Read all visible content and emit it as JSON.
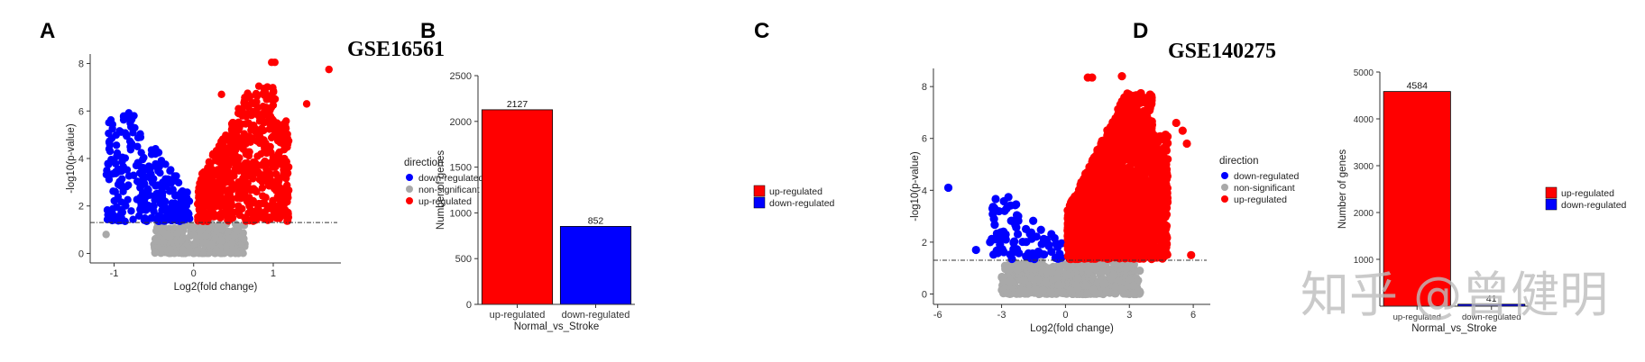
{
  "panels": {
    "A": "A",
    "B": "B",
    "C": "C",
    "D": "D"
  },
  "watermark": "知乎 @曾健明",
  "colors": {
    "up": "#ff0000",
    "down": "#0000ff",
    "ns": "#a9a9a9"
  },
  "chart_data": [
    {
      "id": "A",
      "type": "scatter",
      "title": "GSE16561",
      "xlabel": "Log2(fold change)",
      "ylabel": "-log10(p-value)",
      "xlim": [
        -1.3,
        1.85
      ],
      "ylim": [
        -0.4,
        8.4
      ],
      "xticks": [
        -1,
        0,
        1
      ],
      "yticks": [
        0,
        2,
        4,
        6,
        8
      ],
      "threshold_y": 1.3,
      "legend": {
        "title": "direction",
        "entries": [
          "down-regulated",
          "non-significant",
          "up-regulated"
        ],
        "position": "right"
      },
      "clusters": {
        "down": {
          "xrange": [
            -1.1,
            -0.05
          ],
          "maxY": 5.9,
          "n": 300
        },
        "up": {
          "xrange": [
            0.05,
            1.2
          ],
          "maxY": 7.0,
          "n": 650
        },
        "ns": {
          "xrange": [
            -0.5,
            0.65
          ],
          "n": 400
        }
      },
      "extremes": [
        [
          0.98,
          8.05
        ],
        [
          1.02,
          8.05
        ],
        [
          1.7,
          7.75
        ],
        [
          1.42,
          6.3
        ],
        [
          0.35,
          6.7
        ],
        [
          -0.85,
          5.8
        ],
        [
          -0.75,
          5.8
        ],
        [
          -1.05,
          4.3
        ],
        [
          -1.1,
          0.8
        ]
      ]
    },
    {
      "id": "B",
      "type": "bar",
      "categories": [
        "up-regulated",
        "down-regulated"
      ],
      "values": [
        2127,
        852
      ],
      "xlabel": "Normal_vs_Stroke",
      "ylabel": "Number of genes",
      "ylim": [
        0,
        2500
      ],
      "yticks": [
        0,
        500,
        1000,
        1500,
        2000,
        2500
      ],
      "legend": {
        "entries": [
          "up-regulated",
          "down-regulated"
        ],
        "position": "right"
      }
    },
    {
      "id": "C",
      "type": "scatter",
      "title": "GSE140275",
      "xlabel": "Log2(fold change)",
      "ylabel": "-log10(p-value)",
      "xlim": [
        -6.2,
        6.8
      ],
      "ylim": [
        -0.4,
        8.7
      ],
      "xticks": [
        -6,
        -3,
        0,
        3,
        6
      ],
      "yticks": [
        0,
        2,
        4,
        6,
        8
      ],
      "threshold_y": 1.3,
      "legend": {
        "title": "direction",
        "entries": [
          "down-regulated",
          "non-significant",
          "up-regulated"
        ],
        "position": "right"
      },
      "clusters": {
        "down": {
          "xrange": [
            -3.6,
            -0.1
          ],
          "maxY": 3.7,
          "n": 90
        },
        "up": {
          "xrange": [
            0.1,
            4.8
          ],
          "maxY": 7.7,
          "n": 2300
        },
        "ns": {
          "xrange": [
            -3.0,
            3.5
          ],
          "n": 500
        }
      },
      "extremes": [
        [
          1.05,
          8.35
        ],
        [
          1.25,
          8.35
        ],
        [
          2.65,
          8.4
        ],
        [
          5.2,
          6.6
        ],
        [
          5.7,
          5.8
        ],
        [
          5.5,
          6.3
        ],
        [
          -5.5,
          4.1
        ],
        [
          -4.2,
          1.7
        ],
        [
          5.9,
          1.5
        ]
      ]
    },
    {
      "id": "D",
      "type": "bar",
      "categories": [
        "up-regulated",
        "down-regulated"
      ],
      "values": [
        4584,
        41
      ],
      "xlabel": "Normal_vs_Stroke",
      "ylabel": "Number of genes",
      "ylim": [
        0,
        5000
      ],
      "yticks": [
        1000,
        2000,
        3000,
        4000,
        5000
      ],
      "legend": {
        "entries": [
          "up-regulated",
          "down-regulated"
        ],
        "position": "right"
      }
    }
  ]
}
